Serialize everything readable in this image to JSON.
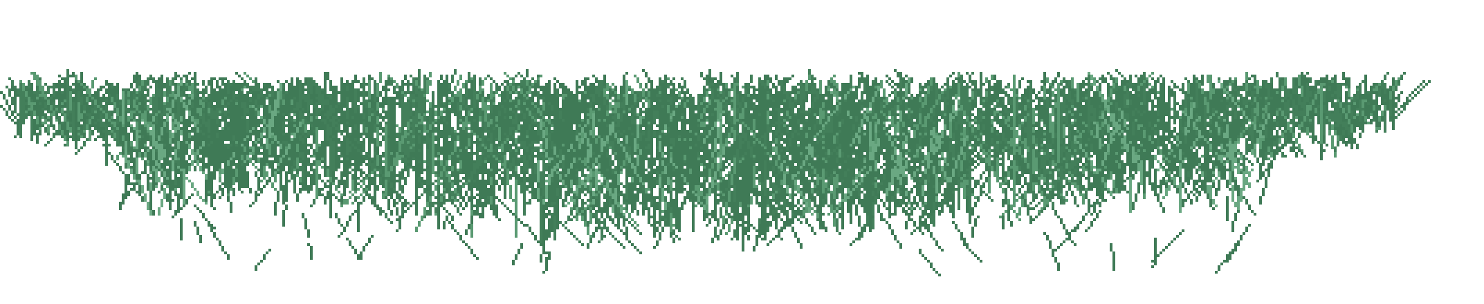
{
  "scene": {
    "subject": "grass-sprite",
    "background_color": "#ffffff",
    "palette": {
      "blade_dark": "#3f7a56",
      "blade_mid": "#437f5a",
      "blade_light": "#5a9a72",
      "blade_highlight": "#6aa882"
    }
  }
}
